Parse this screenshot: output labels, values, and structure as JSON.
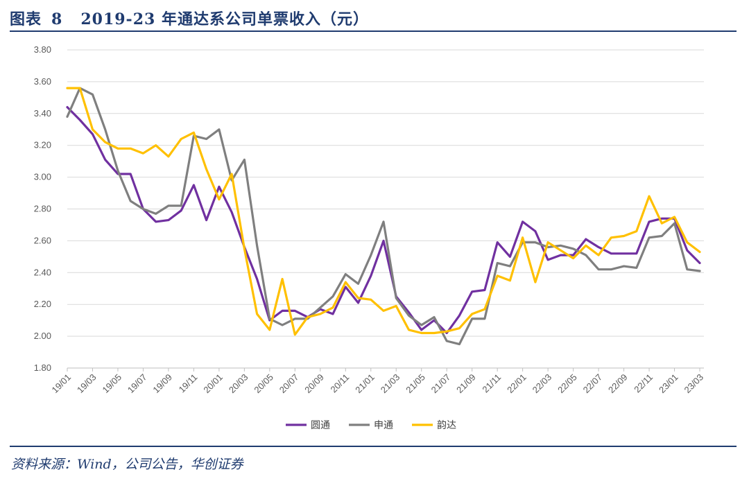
{
  "header": {
    "title_prefix": "图表",
    "title_number": "8",
    "title_text": "2019-23 年通达系公司单票收入（元）"
  },
  "footer": {
    "source": "资料来源：Wind，公司公告，华创证券"
  },
  "colors": {
    "圆通": "#7030a0",
    "申通": "#7f7f7f",
    "韵达": "#ffc000",
    "title": "#1f3b6f"
  },
  "chart_data": {
    "type": "line",
    "ylim": [
      1.8,
      3.8
    ],
    "yticks": [
      "3.80",
      "3.60",
      "3.40",
      "3.20",
      "3.00",
      "2.80",
      "2.60",
      "2.40",
      "2.20",
      "2.00",
      "1.80"
    ],
    "x": [
      "19/01",
      "19/02",
      "19/03",
      "19/04",
      "19/05",
      "19/06",
      "19/07",
      "19/08",
      "19/09",
      "19/10",
      "19/11",
      "19/12",
      "20/01",
      "20/02",
      "20/03",
      "20/04",
      "20/05",
      "20/06",
      "20/07",
      "20/08",
      "20/09",
      "20/10",
      "20/11",
      "20/12",
      "21/01",
      "21/02",
      "21/03",
      "21/04",
      "21/05",
      "21/06",
      "21/07",
      "21/08",
      "21/09",
      "21/10",
      "21/11",
      "21/12",
      "22/01",
      "22/02",
      "22/03",
      "22/04",
      "22/05",
      "22/06",
      "22/07",
      "22/08",
      "22/09",
      "22/10",
      "22/11",
      "22/12",
      "23/01",
      "23/02",
      "23/03"
    ],
    "xtick_labels": [
      "19/01",
      "19/03",
      "19/05",
      "19/07",
      "19/09",
      "19/11",
      "20/01",
      "20/03",
      "20/05",
      "20/07",
      "20/09",
      "20/11",
      "21/01",
      "21/03",
      "21/05",
      "21/07",
      "21/09",
      "21/11",
      "22/01",
      "22/03",
      "22/05",
      "22/07",
      "22/09",
      "22/11",
      "23/01",
      "23/03"
    ],
    "series": [
      {
        "name": "圆通",
        "values": [
          3.44,
          3.36,
          3.27,
          3.11,
          3.02,
          3.02,
          2.8,
          2.72,
          2.73,
          2.79,
          2.95,
          2.73,
          2.94,
          2.78,
          2.56,
          2.36,
          2.1,
          2.16,
          2.16,
          2.12,
          2.17,
          2.14,
          2.31,
          2.21,
          2.38,
          2.6,
          2.25,
          2.15,
          2.04,
          2.1,
          2.02,
          2.13,
          2.28,
          2.29,
          2.59,
          2.5,
          2.72,
          2.66,
          2.48,
          2.51,
          2.51,
          2.61,
          2.56,
          2.52,
          2.52,
          2.52,
          2.72,
          2.74,
          2.74,
          2.54,
          2.46
        ]
      },
      {
        "name": "申通",
        "values": [
          3.38,
          3.56,
          3.52,
          3.3,
          3.04,
          2.85,
          2.8,
          2.77,
          2.82,
          2.82,
          3.26,
          3.24,
          3.3,
          2.98,
          3.11,
          2.57,
          2.11,
          2.07,
          2.11,
          2.11,
          2.18,
          2.25,
          2.39,
          2.33,
          2.51,
          2.72,
          2.24,
          2.13,
          2.07,
          2.12,
          1.97,
          1.95,
          2.11,
          2.11,
          2.46,
          2.44,
          2.59,
          2.59,
          2.56,
          2.57,
          2.55,
          2.51,
          2.42,
          2.42,
          2.44,
          2.43,
          2.62,
          2.63,
          2.71,
          2.42,
          2.41
        ]
      },
      {
        "name": "韵达",
        "values": [
          3.56,
          3.56,
          3.3,
          3.22,
          3.18,
          3.18,
          3.15,
          3.2,
          3.13,
          3.24,
          3.28,
          3.05,
          2.86,
          3.02,
          2.55,
          2.14,
          2.04,
          2.36,
          2.01,
          2.12,
          2.14,
          2.18,
          2.34,
          2.24,
          2.23,
          2.16,
          2.19,
          2.04,
          2.02,
          2.02,
          2.03,
          2.05,
          2.14,
          2.17,
          2.38,
          2.35,
          2.62,
          2.34,
          2.59,
          2.54,
          2.49,
          2.57,
          2.51,
          2.62,
          2.63,
          2.66,
          2.88,
          2.71,
          2.75,
          2.59,
          2.53
        ]
      }
    ],
    "legend": [
      "圆通",
      "申通",
      "韵达"
    ],
    "legend_position": "bottom"
  }
}
